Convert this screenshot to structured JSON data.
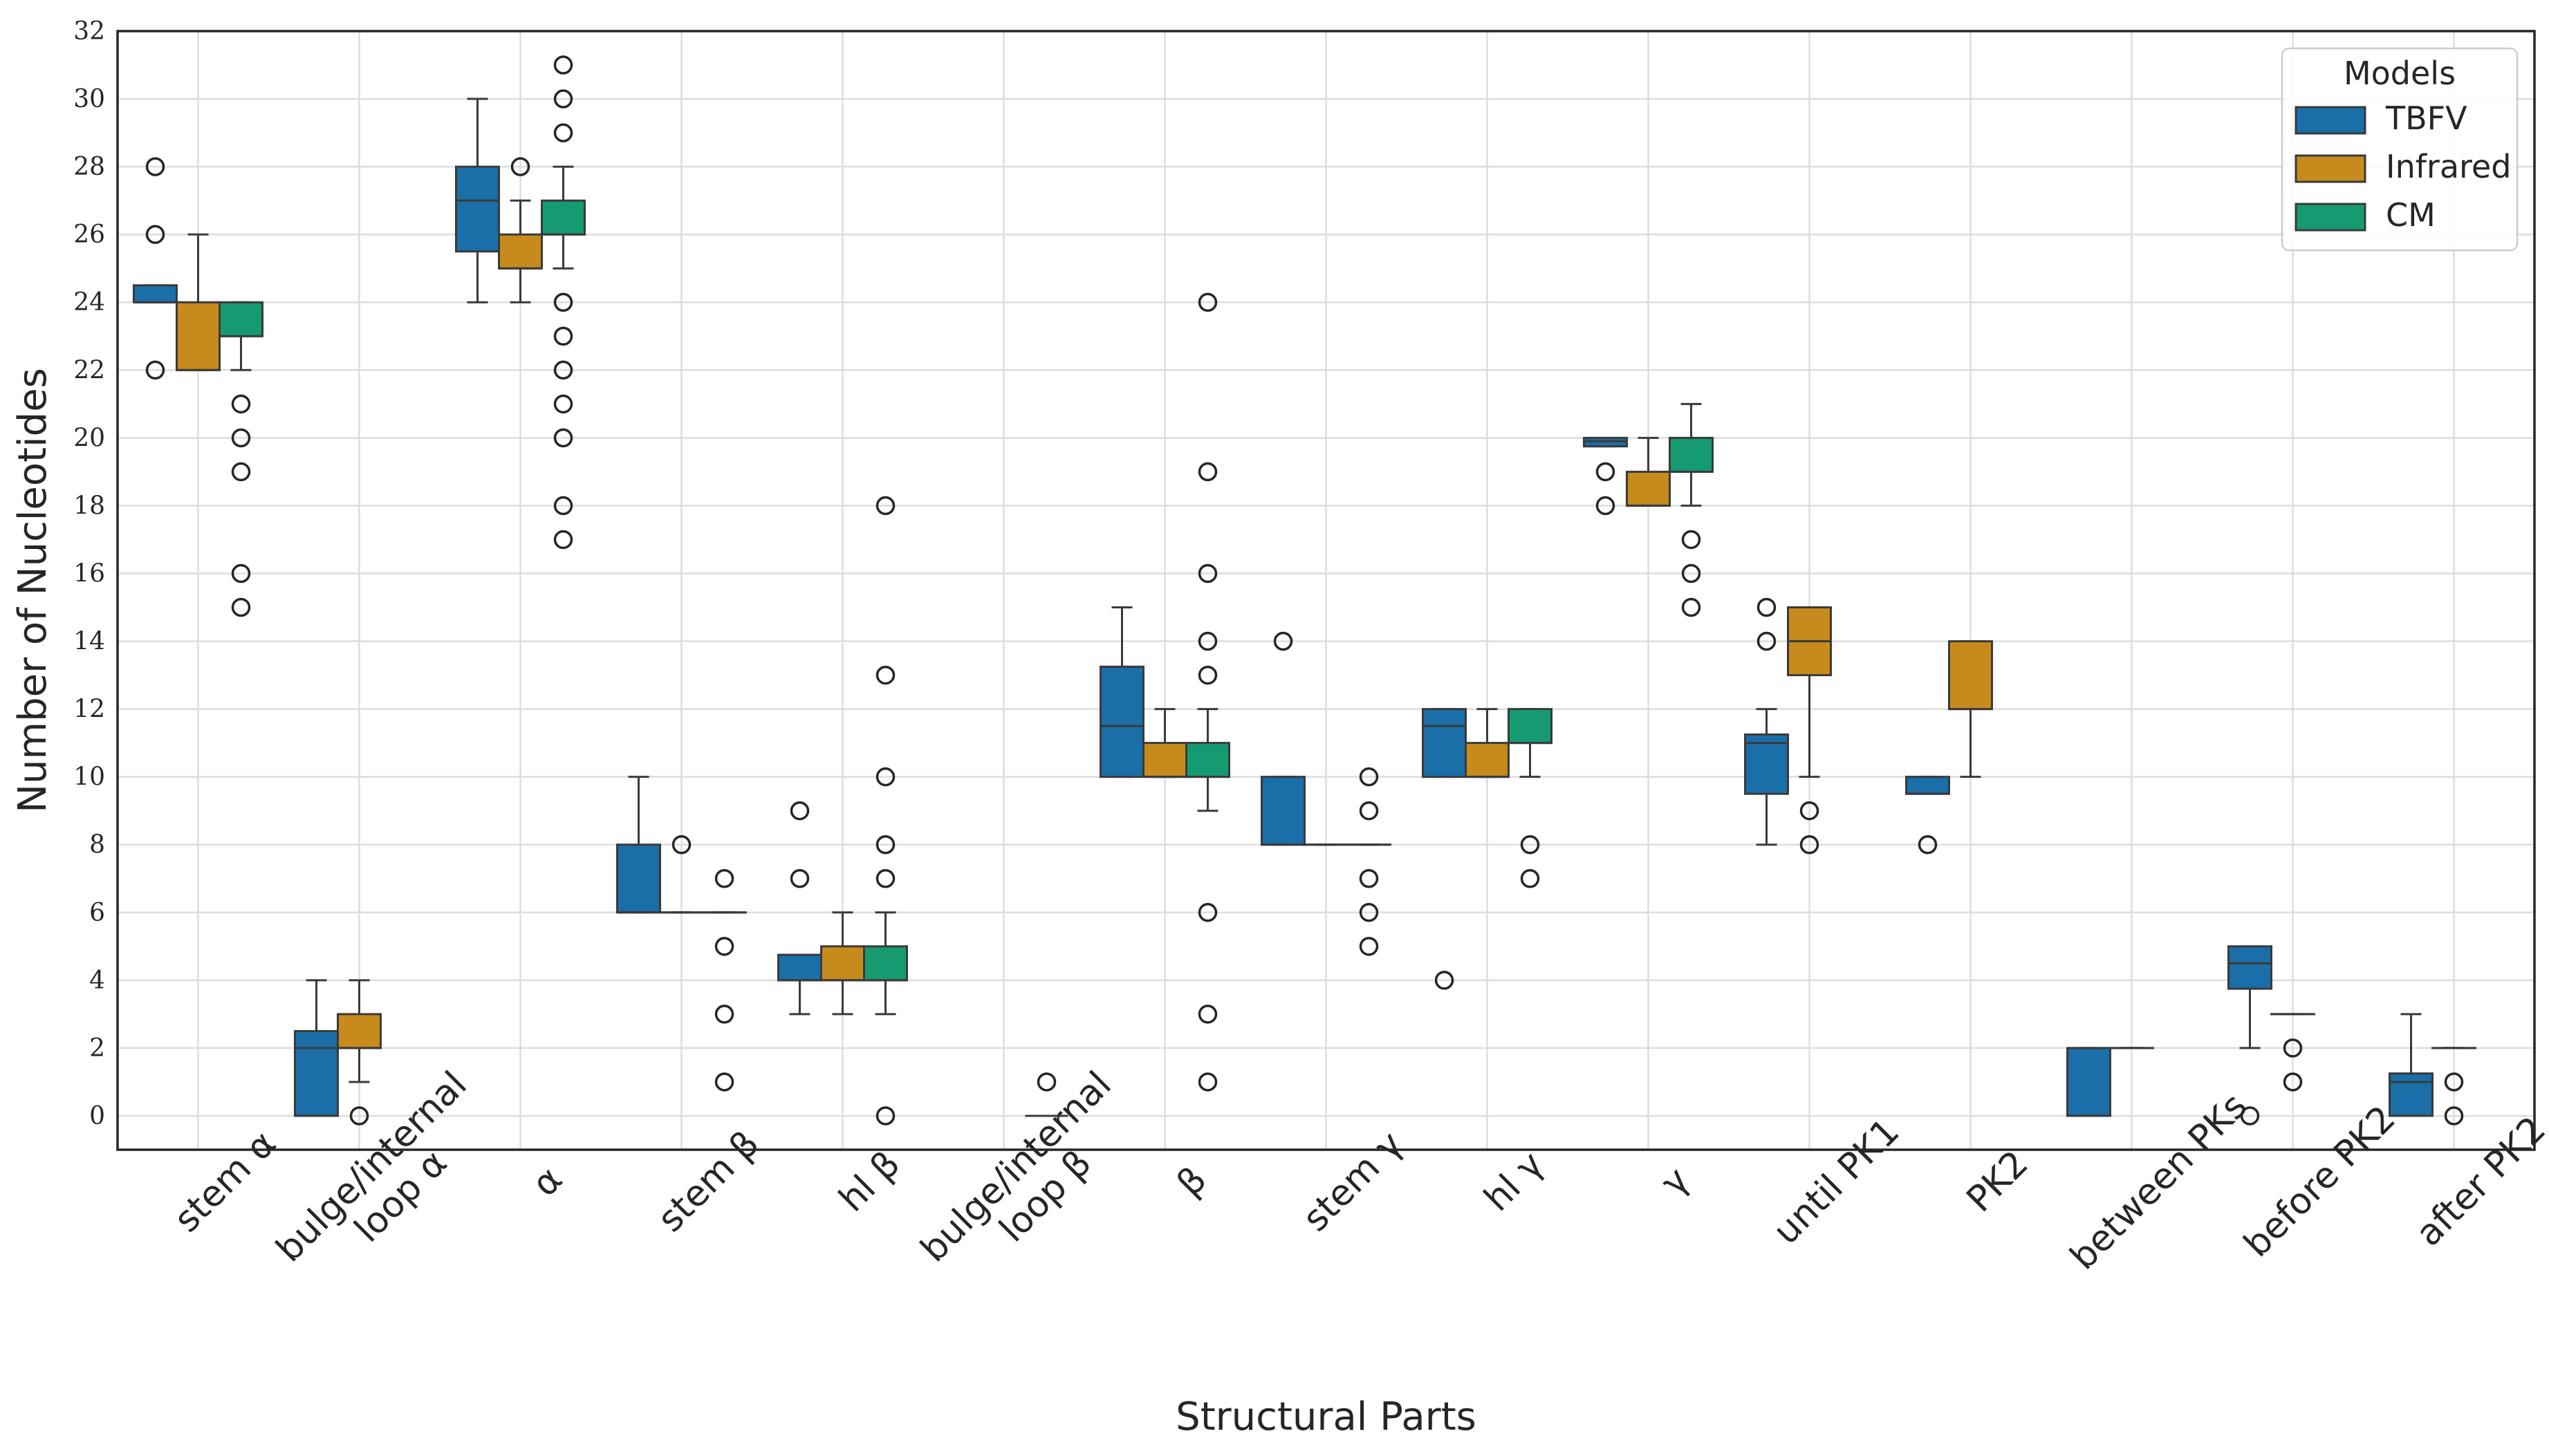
{
  "chart_data": {
    "type": "box",
    "xlabel": "Structural Parts",
    "ylabel": "Number of Nucleotides",
    "ylim": [
      -1,
      32
    ],
    "yticks": [
      0,
      2,
      4,
      6,
      8,
      10,
      12,
      14,
      16,
      18,
      20,
      22,
      24,
      26,
      28,
      30,
      32
    ],
    "grid": true,
    "legend": {
      "title": "Models",
      "placement": "top-right",
      "entries": [
        "TBFV",
        "Infrared",
        "CM"
      ]
    },
    "categories": [
      [
        "stem α"
      ],
      [
        "bulge/internal",
        "loop α"
      ],
      [
        "α"
      ],
      [
        "stem β"
      ],
      [
        "hl β"
      ],
      [
        "bulge/internal",
        "loop β"
      ],
      [
        "β"
      ],
      [
        "stem γ"
      ],
      [
        "hl γ"
      ],
      [
        "γ"
      ],
      [
        "until PK1"
      ],
      [
        "PK2"
      ],
      [
        "between PKs"
      ],
      [
        "before PK2"
      ],
      [
        "after PK2"
      ]
    ],
    "series": [
      {
        "name": "TBFV",
        "color": "#1a6fa8",
        "boxes": [
          {
            "cat": 0,
            "q1": 24,
            "median": 24,
            "q3": 24.5,
            "wlo": 24,
            "whi": 24.5,
            "outliers": [
              22,
              26,
              28
            ]
          },
          {
            "cat": 1,
            "q1": 0,
            "median": 2,
            "q3": 2.5,
            "wlo": 0,
            "whi": 4,
            "outliers": []
          },
          {
            "cat": 2,
            "q1": 25.5,
            "median": 27,
            "q3": 28,
            "wlo": 24,
            "whi": 30,
            "outliers": []
          },
          {
            "cat": 3,
            "q1": 6,
            "median": 6,
            "q3": 8,
            "wlo": 6,
            "whi": 10,
            "outliers": []
          },
          {
            "cat": 4,
            "q1": 4,
            "median": 4,
            "q3": 4.75,
            "wlo": 3,
            "whi": 4.75,
            "outliers": [
              7,
              9
            ]
          },
          {
            "cat": 6,
            "q1": 10,
            "median": 11.5,
            "q3": 13.25,
            "wlo": 10,
            "whi": 15,
            "outliers": []
          },
          {
            "cat": 7,
            "q1": 8,
            "median": 8,
            "q3": 10,
            "wlo": 8,
            "whi": 10,
            "outliers": [
              14
            ]
          },
          {
            "cat": 8,
            "q1": 10,
            "median": 11.5,
            "q3": 12,
            "wlo": 10,
            "whi": 12,
            "outliers": [
              4
            ]
          },
          {
            "cat": 9,
            "q1": 19.75,
            "median": 19.9,
            "q3": 20,
            "wlo": 19.75,
            "whi": 20,
            "outliers": [
              18,
              19
            ]
          },
          {
            "cat": 10,
            "q1": 9.5,
            "median": 11,
            "q3": 11.25,
            "wlo": 8,
            "whi": 12,
            "outliers": [
              14,
              15
            ]
          },
          {
            "cat": 11,
            "q1": 9.5,
            "median": 9.5,
            "q3": 10,
            "wlo": 9.5,
            "whi": 10,
            "outliers": [
              8
            ]
          },
          {
            "cat": 12,
            "q1": 0,
            "median": 2,
            "q3": 2,
            "wlo": 0,
            "whi": 2,
            "outliers": []
          },
          {
            "cat": 13,
            "q1": 3.75,
            "median": 4.5,
            "q3": 5,
            "wlo": 2,
            "whi": 5,
            "outliers": [
              0
            ]
          },
          {
            "cat": 14,
            "q1": 0,
            "median": 1,
            "q3": 1.25,
            "wlo": 0,
            "whi": 3,
            "outliers": []
          }
        ]
      },
      {
        "name": "Infrared",
        "color": "#c68b1c",
        "boxes": [
          {
            "cat": 0,
            "q1": 22,
            "median": 22,
            "q3": 24,
            "wlo": 22,
            "whi": 26,
            "outliers": []
          },
          {
            "cat": 1,
            "q1": 2,
            "median": 2,
            "q3": 3,
            "wlo": 1,
            "whi": 4,
            "outliers": [
              0
            ]
          },
          {
            "cat": 2,
            "q1": 25,
            "median": 25,
            "q3": 26,
            "wlo": 24,
            "whi": 27,
            "outliers": [
              28
            ]
          },
          {
            "cat": 3,
            "q1": 6,
            "median": 6,
            "q3": 6,
            "wlo": 6,
            "whi": 6,
            "outliers": [
              8
            ]
          },
          {
            "cat": 4,
            "q1": 4,
            "median": 4,
            "q3": 5,
            "wlo": 3,
            "whi": 6,
            "outliers": []
          },
          {
            "cat": 6,
            "q1": 10,
            "median": 10,
            "q3": 11,
            "wlo": 10,
            "whi": 12,
            "outliers": []
          },
          {
            "cat": 7,
            "q1": 8,
            "median": 8,
            "q3": 8,
            "wlo": 8,
            "whi": 8,
            "outliers": []
          },
          {
            "cat": 8,
            "q1": 10,
            "median": 10,
            "q3": 11,
            "wlo": 10,
            "whi": 12,
            "outliers": []
          },
          {
            "cat": 9,
            "q1": 18,
            "median": 18,
            "q3": 19,
            "wlo": 18,
            "whi": 20,
            "outliers": []
          },
          {
            "cat": 10,
            "q1": 13,
            "median": 14,
            "q3": 15,
            "wlo": 10,
            "whi": 15,
            "outliers": [
              8,
              9
            ]
          },
          {
            "cat": 11,
            "q1": 12,
            "median": 12,
            "q3": 14,
            "wlo": 10,
            "whi": 14,
            "outliers": []
          },
          {
            "cat": 12,
            "q1": 2,
            "median": 2,
            "q3": 2,
            "wlo": 2,
            "whi": 2,
            "outliers": []
          },
          {
            "cat": 13,
            "q1": 3,
            "median": 3,
            "q3": 3,
            "wlo": 3,
            "whi": 3,
            "outliers": [
              1,
              2
            ]
          },
          {
            "cat": 14,
            "q1": 2,
            "median": 2,
            "q3": 2,
            "wlo": 2,
            "whi": 2,
            "outliers": [
              0,
              1
            ]
          }
        ]
      },
      {
        "name": "CM",
        "color": "#159a72",
        "boxes": [
          {
            "cat": 0,
            "q1": 23,
            "median": 23,
            "q3": 24,
            "wlo": 22,
            "whi": 24,
            "outliers": [
              15,
              16,
              19,
              20,
              21
            ]
          },
          {
            "cat": 1,
            "q1": 0,
            "median": 0,
            "q3": 0,
            "wlo": 0,
            "whi": 0,
            "outliers": [],
            "hidden": true
          },
          {
            "cat": 2,
            "q1": 26,
            "median": 26,
            "q3": 27,
            "wlo": 25,
            "whi": 28,
            "outliers": [
              17,
              18,
              20,
              21,
              22,
              23,
              24,
              29,
              30,
              31
            ]
          },
          {
            "cat": 3,
            "q1": 6,
            "median": 6,
            "q3": 6,
            "wlo": 6,
            "whi": 6,
            "outliers": [
              1,
              3,
              5,
              7
            ]
          },
          {
            "cat": 4,
            "q1": 4,
            "median": 4,
            "q3": 5,
            "wlo": 3,
            "whi": 6,
            "outliers": [
              0,
              7,
              8,
              10,
              13,
              18
            ]
          },
          {
            "cat": 5,
            "q1": 0,
            "median": 0,
            "q3": 0,
            "wlo": 0,
            "whi": 0,
            "outliers": [
              1
            ],
            "flatline": true
          },
          {
            "cat": 6,
            "q1": 10,
            "median": 10,
            "q3": 11,
            "wlo": 9,
            "whi": 12,
            "outliers": [
              1,
              3,
              6,
              13,
              14,
              16,
              19,
              24
            ]
          },
          {
            "cat": 7,
            "q1": 8,
            "median": 8,
            "q3": 8,
            "wlo": 8,
            "whi": 8,
            "outliers": [
              5,
              6,
              7,
              9,
              10
            ]
          },
          {
            "cat": 8,
            "q1": 11,
            "median": 11,
            "q3": 12,
            "wlo": 10,
            "whi": 12,
            "outliers": [
              7,
              8
            ]
          },
          {
            "cat": 9,
            "q1": 19,
            "median": 19,
            "q3": 20,
            "wlo": 18,
            "whi": 21,
            "outliers": [
              15,
              16,
              17
            ]
          }
        ]
      }
    ]
  }
}
